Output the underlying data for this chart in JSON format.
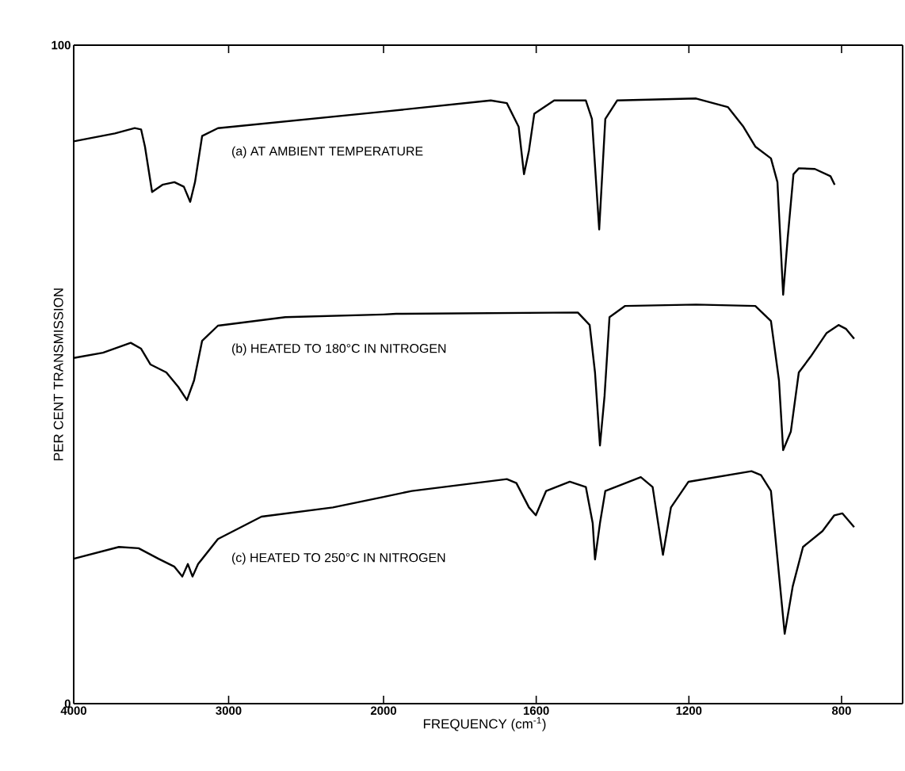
{
  "chart_data": [
    {
      "type": "line",
      "ylabel": "PER CENT TRANSMISSION",
      "xlim": [
        4000,
        2000
      ],
      "ylim": [
        0,
        100
      ],
      "xticks": [
        4000,
        3000
      ],
      "yticks": [
        0,
        100
      ],
      "grid": false,
      "legend": false,
      "marker": "none",
      "line_style": "solid",
      "series": [
        {
          "name": "(a)  AT AMBIENT TEMPERATURE",
          "color": "#000000",
          "x": [
            4000,
            3734,
            3606,
            3565,
            3540,
            3494,
            3427,
            3350,
            3289,
            3248,
            3217,
            3171,
            3069,
            2000
          ],
          "values": [
            85.4,
            86.6,
            87.4,
            87.2,
            84.6,
            77.7,
            78.8,
            79.2,
            78.5,
            76.2,
            79.2,
            86.2,
            87.4,
            89.9
          ]
        },
        {
          "name": "(b)  HEATED TO 180°C IN NITROGEN",
          "color": "#000000",
          "x": [
            4000,
            3811,
            3632,
            3565,
            3504,
            3402,
            3325,
            3269,
            3223,
            3171,
            3069,
            2634,
            2000
          ],
          "values": [
            52.5,
            53.3,
            54.8,
            53.9,
            51.5,
            50.3,
            48.1,
            46.1,
            49.1,
            55.1,
            57.4,
            58.7,
            59.1
          ]
        },
        {
          "name": "(c)  HEATED TO 250°C IN NITROGEN",
          "color": "#000000",
          "x": [
            4000,
            3708,
            3581,
            3453,
            3350,
            3299,
            3263,
            3233,
            3197,
            3069,
            2788,
            2327,
            2000
          ],
          "values": [
            22.0,
            23.8,
            23.6,
            22.0,
            20.8,
            19.3,
            21.2,
            19.3,
            21.2,
            25.0,
            28.4,
            29.8,
            31.4
          ]
        }
      ]
    },
    {
      "type": "line",
      "xlabel": "FREQUENCY (cm$^{-1}$)",
      "xlim": [
        2000,
        640
      ],
      "ylim": [
        0,
        100
      ],
      "xticks": [
        2000,
        1600,
        1200,
        800
      ],
      "yticks": [
        0,
        100
      ],
      "tick_labels": "x",
      "grid": false,
      "marker": "none",
      "line_style": "solid",
      "series": [
        {
          "color": "#000000",
          "x": [
            2000,
            1719,
            1677,
            1646,
            1632,
            1619,
            1605,
            1553,
            1470,
            1454,
            1435,
            1419,
            1388,
            1181,
            1098,
            1057,
            1026,
            985,
            968,
            953,
            941,
            926,
            912,
            870,
            829,
            818
          ],
          "values": [
            89.9,
            91.6,
            91.2,
            87.6,
            80.4,
            84.0,
            89.6,
            91.6,
            91.6,
            88.8,
            72.0,
            88.8,
            91.6,
            91.9,
            90.6,
            87.6,
            84.6,
            82.8,
            79.2,
            62.1,
            70.8,
            80.4,
            81.3,
            81.2,
            80.1,
            78.8
          ]
        },
        {
          "color": "#000000",
          "x": [
            2000,
            1967,
            1491,
            1460,
            1446,
            1433,
            1421,
            1408,
            1367,
            1181,
            1026,
            985,
            964,
            953,
            933,
            912,
            881,
            839,
            808,
            788,
            767
          ],
          "values": [
            59.1,
            59.2,
            59.4,
            57.5,
            50.3,
            39.2,
            46.7,
            58.7,
            60.4,
            60.6,
            60.4,
            58.1,
            49.1,
            38.5,
            41.3,
            50.3,
            52.7,
            56.3,
            57.5,
            56.9,
            55.4
          ]
        },
        {
          "color": "#000000",
          "x": [
            2000,
            1926,
            1677,
            1652,
            1619,
            1601,
            1574,
            1512,
            1470,
            1452,
            1446,
            1433,
            1419,
            1326,
            1295,
            1268,
            1247,
            1201,
            1036,
            1011,
            985,
            949,
            928,
            901,
            850,
            819,
            798,
            767
          ],
          "values": [
            31.4,
            32.3,
            34.1,
            33.5,
            29.8,
            28.6,
            32.3,
            33.7,
            32.9,
            27.4,
            21.9,
            27.4,
            32.3,
            34.4,
            32.9,
            22.6,
            29.8,
            33.7,
            35.3,
            34.7,
            32.3,
            10.6,
            17.8,
            23.8,
            26.2,
            28.6,
            28.9,
            26.8
          ]
        }
      ]
    }
  ]
}
